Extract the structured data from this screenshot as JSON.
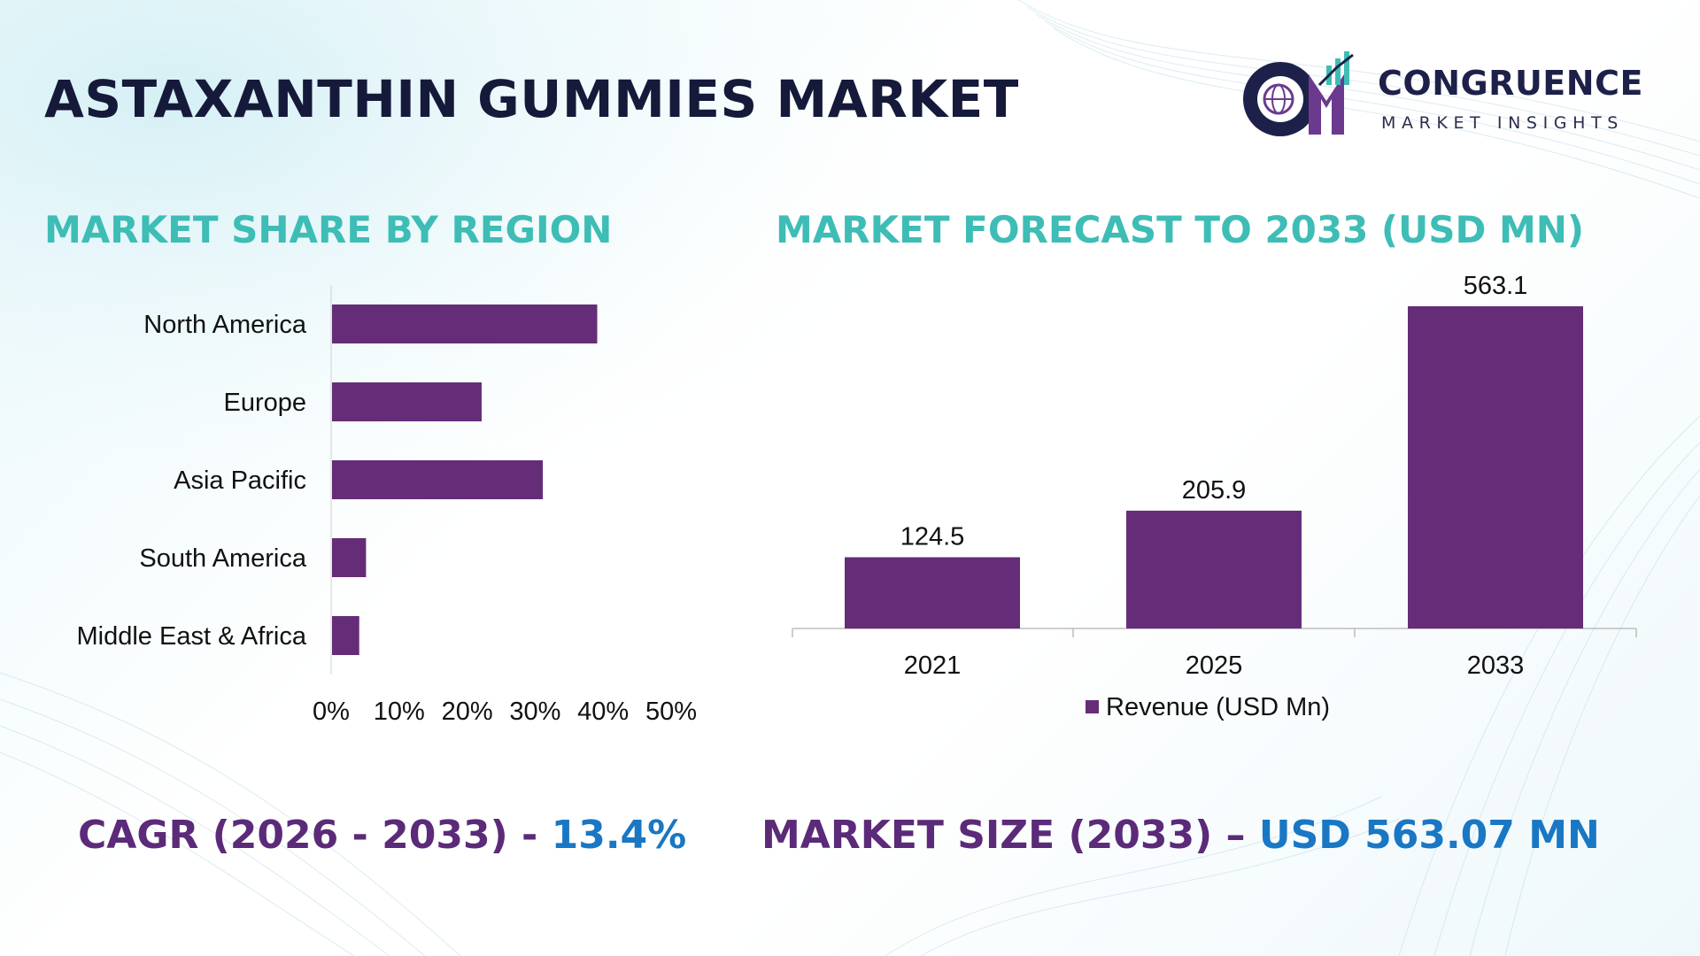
{
  "title": "ASTAXANTHIN GUMMIES MARKET",
  "logo": {
    "icon": "cm-globe-growth-logo",
    "name": "CONGRUENCE",
    "tagline": "MARKET INSIGHTS"
  },
  "colors": {
    "bar": "#652d78",
    "title": "#151a3a",
    "section_title": "#3dbdb5",
    "kpi_label": "#5b2a78",
    "kpi_value": "#1977c4"
  },
  "chart_data": [
    {
      "type": "bar",
      "orientation": "horizontal",
      "title": "MARKET SHARE BY REGION",
      "categories": [
        "North America",
        "Europe",
        "Asia Pacific",
        "South America",
        "Middle East & Africa"
      ],
      "values": [
        39,
        22,
        31,
        5,
        4
      ],
      "unit": "%",
      "xlim": [
        0,
        50
      ],
      "ticks": [
        "0%",
        "10%",
        "20%",
        "30%",
        "40%",
        "50%"
      ],
      "tick_values": [
        0,
        10,
        20,
        30,
        40,
        50
      ],
      "grid": false
    },
    {
      "type": "bar",
      "orientation": "vertical",
      "title": "MARKET FORECAST TO 2033 (USD MN)",
      "categories": [
        "2021",
        "2025",
        "2033"
      ],
      "series": [
        {
          "name": "Revenue (USD Mn)",
          "values": [
            124.5,
            205.9,
            563.1
          ]
        }
      ],
      "data_labels": [
        "124.5",
        "205.9",
        "563.1"
      ],
      "ylim": [
        0,
        563.1
      ],
      "legend": "bottom",
      "grid": false
    }
  ],
  "kpis": {
    "cagr_label": "CAGR (2026 - 2033) - ",
    "cagr_value": "13.4%",
    "size_label": "MARKET SIZE (2033) – ",
    "size_value": "USD 563.07 MN"
  }
}
